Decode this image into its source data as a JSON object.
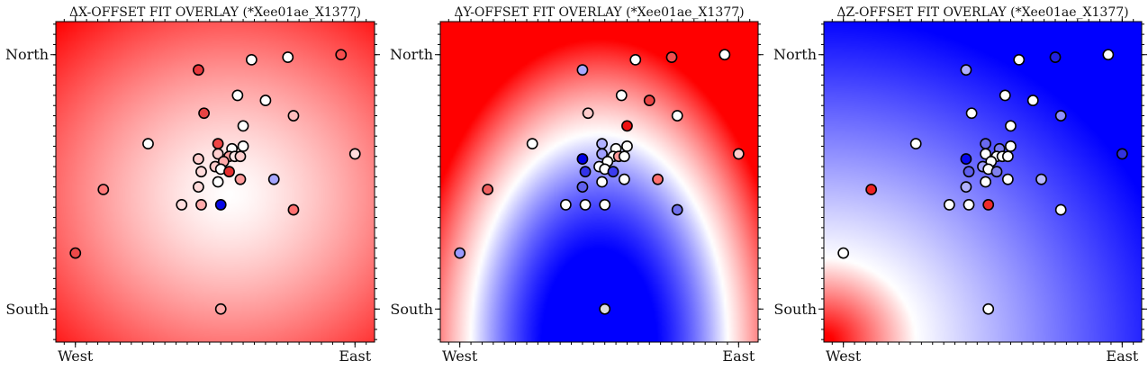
{
  "chart_data": [
    {
      "type": "scatter",
      "title": "ΔX-OFFSET FIT OVERLAY (*Xee01ae_X1377)",
      "xticks": [
        "West",
        "East"
      ],
      "yticks": [
        "North",
        "South"
      ],
      "xlim": [
        -0.07,
        1.07
      ],
      "ylim": [
        -0.13,
        1.13
      ],
      "background": {
        "kind": "radial",
        "cx": 0.55,
        "cy": 0.45,
        "inner_color": "#ffffff",
        "outer_color": "#ff0000"
      },
      "points": [
        {
          "x": 0.44,
          "y": 0.94,
          "color": "#e8383d"
        },
        {
          "x": 0.63,
          "y": 0.98,
          "color": "#ffffff"
        },
        {
          "x": 0.76,
          "y": 0.99,
          "color": "#ffffff"
        },
        {
          "x": 0.95,
          "y": 1.0,
          "color": "#f64e4e"
        },
        {
          "x": 0.58,
          "y": 0.84,
          "color": "#ffffff"
        },
        {
          "x": 0.68,
          "y": 0.82,
          "color": "#ffffff"
        },
        {
          "x": 0.46,
          "y": 0.77,
          "color": "#e84444"
        },
        {
          "x": 0.78,
          "y": 0.76,
          "color": "#ffbcbc"
        },
        {
          "x": 0.6,
          "y": 0.72,
          "color": "#ffffff"
        },
        {
          "x": 0.26,
          "y": 0.65,
          "color": "#ffffff"
        },
        {
          "x": 0.51,
          "y": 0.65,
          "color": "#ef4444"
        },
        {
          "x": 0.56,
          "y": 0.63,
          "color": "#ffffff"
        },
        {
          "x": 0.6,
          "y": 0.64,
          "color": "#ffffff"
        },
        {
          "x": 0.51,
          "y": 0.61,
          "color": "#ffd0d0"
        },
        {
          "x": 0.55,
          "y": 0.6,
          "color": "#ff9d9d"
        },
        {
          "x": 0.57,
          "y": 0.6,
          "color": "#ffe6e6"
        },
        {
          "x": 0.59,
          "y": 0.6,
          "color": "#ffcccc"
        },
        {
          "x": 0.44,
          "y": 0.59,
          "color": "#ffcccc"
        },
        {
          "x": 0.53,
          "y": 0.58,
          "color": "#ffaaaa"
        },
        {
          "x": 0.5,
          "y": 0.56,
          "color": "#ffcccc"
        },
        {
          "x": 0.52,
          "y": 0.55,
          "color": "#ffffff"
        },
        {
          "x": 0.55,
          "y": 0.54,
          "color": "#e42f2f"
        },
        {
          "x": 0.45,
          "y": 0.54,
          "color": "#ffdada"
        },
        {
          "x": 0.59,
          "y": 0.51,
          "color": "#ff9a9a"
        },
        {
          "x": 0.51,
          "y": 0.5,
          "color": "#ffffff"
        },
        {
          "x": 0.44,
          "y": 0.48,
          "color": "#ffdada"
        },
        {
          "x": 0.71,
          "y": 0.51,
          "color": "#a6a6ff"
        },
        {
          "x": 0.1,
          "y": 0.47,
          "color": "#ff7878"
        },
        {
          "x": 1.0,
          "y": 0.61,
          "color": "#ffdddd"
        },
        {
          "x": 0.38,
          "y": 0.41,
          "color": "#ffdede"
        },
        {
          "x": 0.45,
          "y": 0.41,
          "color": "#ffaaaa"
        },
        {
          "x": 0.52,
          "y": 0.41,
          "color": "#0707e5"
        },
        {
          "x": 0.78,
          "y": 0.39,
          "color": "#ff7070"
        },
        {
          "x": 0.0,
          "y": 0.22,
          "color": "#ec4949"
        },
        {
          "x": 0.52,
          "y": 0.0,
          "color": "#ffaaaa"
        }
      ]
    },
    {
      "type": "scatter",
      "title": "ΔY-OFFSET FIT OVERLAY (*Xee01ae_X1377)",
      "xticks": [
        "West",
        "East"
      ],
      "yticks": [
        "North",
        "South"
      ],
      "xlim": [
        -0.07,
        1.07
      ],
      "ylim": [
        -0.13,
        1.13
      ],
      "background": {
        "kind": "arch",
        "apex_x": 0.5,
        "apex_y": 0.69,
        "base_y": -0.13,
        "half_width": 0.46,
        "inner_color": "#0000ff",
        "outer_color": "#ff0000"
      },
      "points": [
        {
          "x": 0.44,
          "y": 0.94,
          "color": "#a8a8ff"
        },
        {
          "x": 0.63,
          "y": 0.98,
          "color": "#ffffff"
        },
        {
          "x": 0.76,
          "y": 0.99,
          "color": "#f05050"
        },
        {
          "x": 0.95,
          "y": 1.0,
          "color": "#ffffff"
        },
        {
          "x": 0.58,
          "y": 0.84,
          "color": "#ffffff"
        },
        {
          "x": 0.68,
          "y": 0.82,
          "color": "#e84444"
        },
        {
          "x": 0.46,
          "y": 0.77,
          "color": "#ffcccc"
        },
        {
          "x": 0.78,
          "y": 0.76,
          "color": "#ffffff"
        },
        {
          "x": 0.6,
          "y": 0.72,
          "color": "#ee1111"
        },
        {
          "x": 0.26,
          "y": 0.65,
          "color": "#ffffff"
        },
        {
          "x": 0.51,
          "y": 0.65,
          "color": "#b0b0ff"
        },
        {
          "x": 0.56,
          "y": 0.63,
          "color": "#ffffff"
        },
        {
          "x": 0.6,
          "y": 0.64,
          "color": "#ffffff"
        },
        {
          "x": 0.51,
          "y": 0.61,
          "color": "#a0a0ff"
        },
        {
          "x": 0.55,
          "y": 0.6,
          "color": "#ffffff"
        },
        {
          "x": 0.57,
          "y": 0.6,
          "color": "#ff9a9a"
        },
        {
          "x": 0.59,
          "y": 0.6,
          "color": "#ffffff"
        },
        {
          "x": 0.44,
          "y": 0.59,
          "color": "#0000e5"
        },
        {
          "x": 0.53,
          "y": 0.58,
          "color": "#ffffff"
        },
        {
          "x": 0.5,
          "y": 0.56,
          "color": "#ffffff"
        },
        {
          "x": 0.52,
          "y": 0.55,
          "color": "#ffffff"
        },
        {
          "x": 0.55,
          "y": 0.54,
          "color": "#3c3cf0"
        },
        {
          "x": 0.45,
          "y": 0.54,
          "color": "#3333e8"
        },
        {
          "x": 0.59,
          "y": 0.51,
          "color": "#ffffff"
        },
        {
          "x": 0.51,
          "y": 0.5,
          "color": "#ffffff"
        },
        {
          "x": 0.44,
          "y": 0.48,
          "color": "#6060ee"
        },
        {
          "x": 0.71,
          "y": 0.51,
          "color": "#ff7070"
        },
        {
          "x": 0.1,
          "y": 0.47,
          "color": "#f06060"
        },
        {
          "x": 1.0,
          "y": 0.61,
          "color": "#ffcccc"
        },
        {
          "x": 0.38,
          "y": 0.41,
          "color": "#ffffff"
        },
        {
          "x": 0.45,
          "y": 0.41,
          "color": "#ffffff"
        },
        {
          "x": 0.52,
          "y": 0.41,
          "color": "#ffffff"
        },
        {
          "x": 0.78,
          "y": 0.39,
          "color": "#7070ee"
        },
        {
          "x": 0.0,
          "y": 0.22,
          "color": "#9a9aff"
        },
        {
          "x": 0.52,
          "y": 0.0,
          "color": "#dddddd"
        }
      ]
    },
    {
      "type": "scatter",
      "title": "ΔZ-OFFSET FIT OVERLAY (*Xee01ae_X1377)",
      "xticks": [
        "West",
        "East"
      ],
      "yticks": [
        "North",
        "South"
      ],
      "xlim": [
        -0.07,
        1.07
      ],
      "ylim": [
        -0.13,
        1.13
      ],
      "background": {
        "kind": "corner",
        "cx": -0.07,
        "cy": -0.13,
        "zero_radius": 0.33,
        "inner_color": "#ff0000",
        "outer_color": "#0000ff"
      },
      "points": [
        {
          "x": 0.44,
          "y": 0.94,
          "color": "#b0b0ff"
        },
        {
          "x": 0.63,
          "y": 0.98,
          "color": "#ffffff"
        },
        {
          "x": 0.76,
          "y": 0.99,
          "color": "#2222dd"
        },
        {
          "x": 0.95,
          "y": 1.0,
          "color": "#ffffff"
        },
        {
          "x": 0.58,
          "y": 0.84,
          "color": "#ffffff"
        },
        {
          "x": 0.68,
          "y": 0.82,
          "color": "#ffffff"
        },
        {
          "x": 0.46,
          "y": 0.77,
          "color": "#ffffff"
        },
        {
          "x": 0.78,
          "y": 0.76,
          "color": "#9090ff"
        },
        {
          "x": 0.6,
          "y": 0.72,
          "color": "#ffffff"
        },
        {
          "x": 0.26,
          "y": 0.65,
          "color": "#ffffff"
        },
        {
          "x": 0.51,
          "y": 0.65,
          "color": "#6a6aee"
        },
        {
          "x": 0.56,
          "y": 0.63,
          "color": "#7a7aee"
        },
        {
          "x": 0.6,
          "y": 0.64,
          "color": "#ffffff"
        },
        {
          "x": 0.51,
          "y": 0.61,
          "color": "#ffffff"
        },
        {
          "x": 0.55,
          "y": 0.6,
          "color": "#ffffff"
        },
        {
          "x": 0.57,
          "y": 0.6,
          "color": "#ffffff"
        },
        {
          "x": 0.59,
          "y": 0.6,
          "color": "#ffffff"
        },
        {
          "x": 0.44,
          "y": 0.59,
          "color": "#0707ee"
        },
        {
          "x": 0.53,
          "y": 0.58,
          "color": "#ffffff"
        },
        {
          "x": 0.5,
          "y": 0.56,
          "color": "#a0a0ff"
        },
        {
          "x": 0.52,
          "y": 0.55,
          "color": "#ffffff"
        },
        {
          "x": 0.55,
          "y": 0.54,
          "color": "#8080ee"
        },
        {
          "x": 0.45,
          "y": 0.54,
          "color": "#6060ee"
        },
        {
          "x": 0.59,
          "y": 0.51,
          "color": "#ffffff"
        },
        {
          "x": 0.51,
          "y": 0.5,
          "color": "#ffffff"
        },
        {
          "x": 0.44,
          "y": 0.48,
          "color": "#b0b0ff"
        },
        {
          "x": 0.71,
          "y": 0.51,
          "color": "#b8b8ff"
        },
        {
          "x": 0.1,
          "y": 0.47,
          "color": "#ee2222"
        },
        {
          "x": 1.0,
          "y": 0.61,
          "color": "#3333dd"
        },
        {
          "x": 0.38,
          "y": 0.41,
          "color": "#ffffff"
        },
        {
          "x": 0.45,
          "y": 0.41,
          "color": "#ffffff"
        },
        {
          "x": 0.52,
          "y": 0.41,
          "color": "#ee2a2a"
        },
        {
          "x": 0.78,
          "y": 0.39,
          "color": "#ffffff"
        },
        {
          "x": 0.0,
          "y": 0.22,
          "color": "#ffffff"
        },
        {
          "x": 0.52,
          "y": 0.0,
          "color": "#ffffff"
        }
      ]
    }
  ]
}
